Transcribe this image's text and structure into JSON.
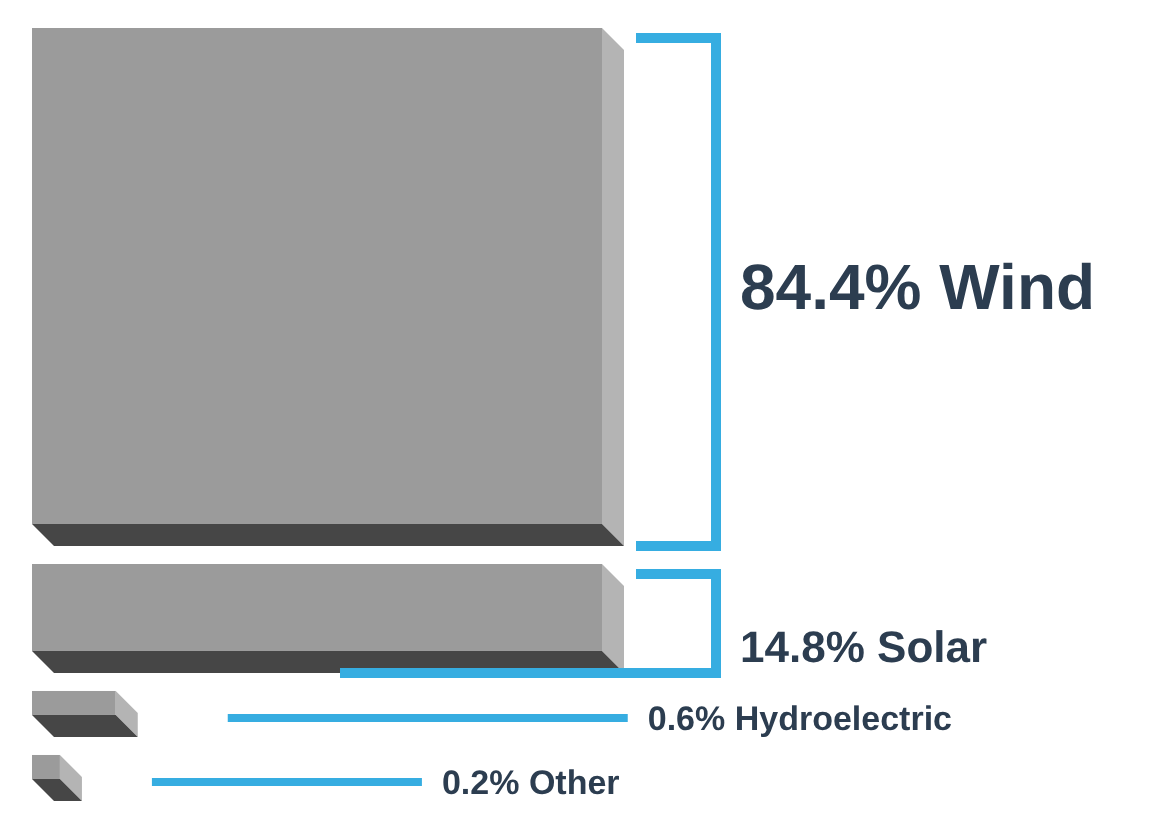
{
  "chart_data": {
    "type": "other",
    "categories": [
      "Wind",
      "Solar",
      "Hydroelectric",
      "Other"
    ],
    "values": [
      84.4,
      14.8,
      0.6,
      0.2
    ],
    "value_labels": [
      "84.4%",
      "14.8%",
      "0.6%",
      "0.2%"
    ],
    "color": "#9b9b9b"
  }
}
